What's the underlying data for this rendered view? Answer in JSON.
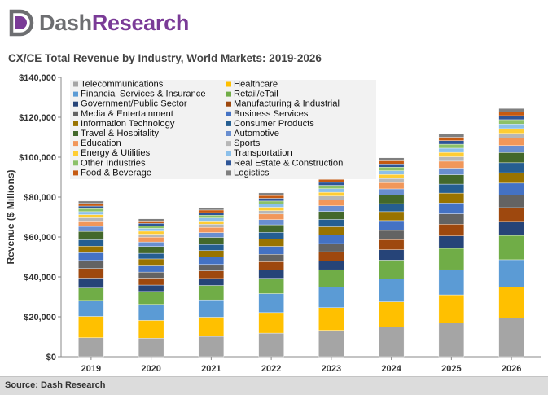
{
  "brand": {
    "dash": "Dash",
    "research": "Research"
  },
  "footer": {
    "source": "Source: Dash Research"
  },
  "chart_data": {
    "type": "bar",
    "stacked": true,
    "title": "CX/CE Total Revenue by Industry, World Markets: 2019-2026",
    "ylabel": "Revenue ($ Millions)",
    "xlabel": "",
    "ylim": [
      0,
      140000
    ],
    "yticks": [
      0,
      20000,
      40000,
      60000,
      80000,
      100000,
      120000,
      140000
    ],
    "ytick_labels": [
      "$0",
      "$20,000",
      "$40,000",
      "$60,000",
      "$80,000",
      "$100,000",
      "$120,000",
      "$140,000"
    ],
    "grid": false,
    "legend_position": "top-left",
    "categories": [
      "2019",
      "2020",
      "2021",
      "2022",
      "2023",
      "2024",
      "2025",
      "2026"
    ],
    "series": [
      {
        "name": "Telecommunications",
        "color": "#a5a5a5",
        "values": [
          9500,
          9300,
          10200,
          11800,
          13200,
          15000,
          17000,
          19500
        ]
      },
      {
        "name": "Healthcare",
        "color": "#ffc000",
        "values": [
          10700,
          8900,
          9600,
          10300,
          11400,
          12500,
          14000,
          15300
        ]
      },
      {
        "name": "Financial Services & Insurance",
        "color": "#5b9bd5",
        "values": [
          8000,
          8000,
          8700,
          9500,
          10400,
          11400,
          12600,
          13800
        ]
      },
      {
        "name": "Retail/eTail",
        "color": "#70ad47",
        "values": [
          6200,
          6500,
          7200,
          7700,
          8600,
          9500,
          10700,
          12200
        ]
      },
      {
        "name": "Government/Public Sector",
        "color": "#264478",
        "values": [
          5000,
          3200,
          3500,
          4100,
          4400,
          5200,
          6200,
          7000
        ]
      },
      {
        "name": "Manufacturing & Industrial",
        "color": "#9e480e",
        "values": [
          4800,
          3500,
          3800,
          4200,
          4600,
          5100,
          5900,
          6900
        ]
      },
      {
        "name": "Media & Entertainment",
        "color": "#636363",
        "values": [
          4000,
          3000,
          3200,
          3700,
          4100,
          4600,
          5200,
          6300
        ]
      },
      {
        "name": "Business Services",
        "color": "#4472c4",
        "values": [
          3900,
          3500,
          3700,
          4000,
          4300,
          4900,
          5400,
          6000
        ]
      },
      {
        "name": "Information Technology",
        "color": "#997300",
        "values": [
          3300,
          3100,
          3300,
          3700,
          4100,
          4500,
          5000,
          5200
        ]
      },
      {
        "name": "Consumer Products",
        "color": "#255e91",
        "values": [
          3200,
          2800,
          3000,
          3300,
          3700,
          4000,
          4500,
          5000
        ]
      },
      {
        "name": "Travel & Hospitality",
        "color": "#43682b",
        "values": [
          4200,
          3400,
          3600,
          3800,
          4000,
          4300,
          4700,
          5100
        ]
      },
      {
        "name": "Automotive",
        "color": "#698ed0",
        "values": [
          2500,
          2300,
          2400,
          2600,
          2800,
          3100,
          3300,
          3500
        ]
      },
      {
        "name": "Education",
        "color": "#f1975a",
        "values": [
          2700,
          2400,
          2600,
          2800,
          3000,
          3200,
          3500,
          3700
        ]
      },
      {
        "name": "Sports",
        "color": "#b7b7b7",
        "values": [
          1600,
          1500,
          1600,
          1700,
          1900,
          2000,
          2200,
          2400
        ]
      },
      {
        "name": "Energy & Utilities",
        "color": "#ffcd33",
        "values": [
          1600,
          1500,
          1600,
          1700,
          1900,
          2000,
          2200,
          2400
        ]
      },
      {
        "name": "Transportation",
        "color": "#8cc0ea",
        "values": [
          1500,
          1400,
          1500,
          1600,
          1800,
          1900,
          2100,
          2300
        ]
      },
      {
        "name": "Other Industries",
        "color": "#8cc168",
        "values": [
          1500,
          1300,
          1400,
          1500,
          1700,
          1800,
          2000,
          2200
        ]
      },
      {
        "name": "Real Estate & Construction",
        "color": "#2e5597",
        "values": [
          1300,
          1200,
          1300,
          1400,
          1500,
          1600,
          1800,
          2000
        ]
      },
      {
        "name": "Food & Beverage",
        "color": "#c55a11",
        "values": [
          1300,
          1200,
          1300,
          1400,
          1500,
          1600,
          1700,
          1900
        ]
      },
      {
        "name": "Logistics",
        "color": "#7f7f7f",
        "values": [
          1200,
          1100,
          1200,
          1300,
          1400,
          1500,
          1600,
          1700
        ]
      }
    ]
  }
}
